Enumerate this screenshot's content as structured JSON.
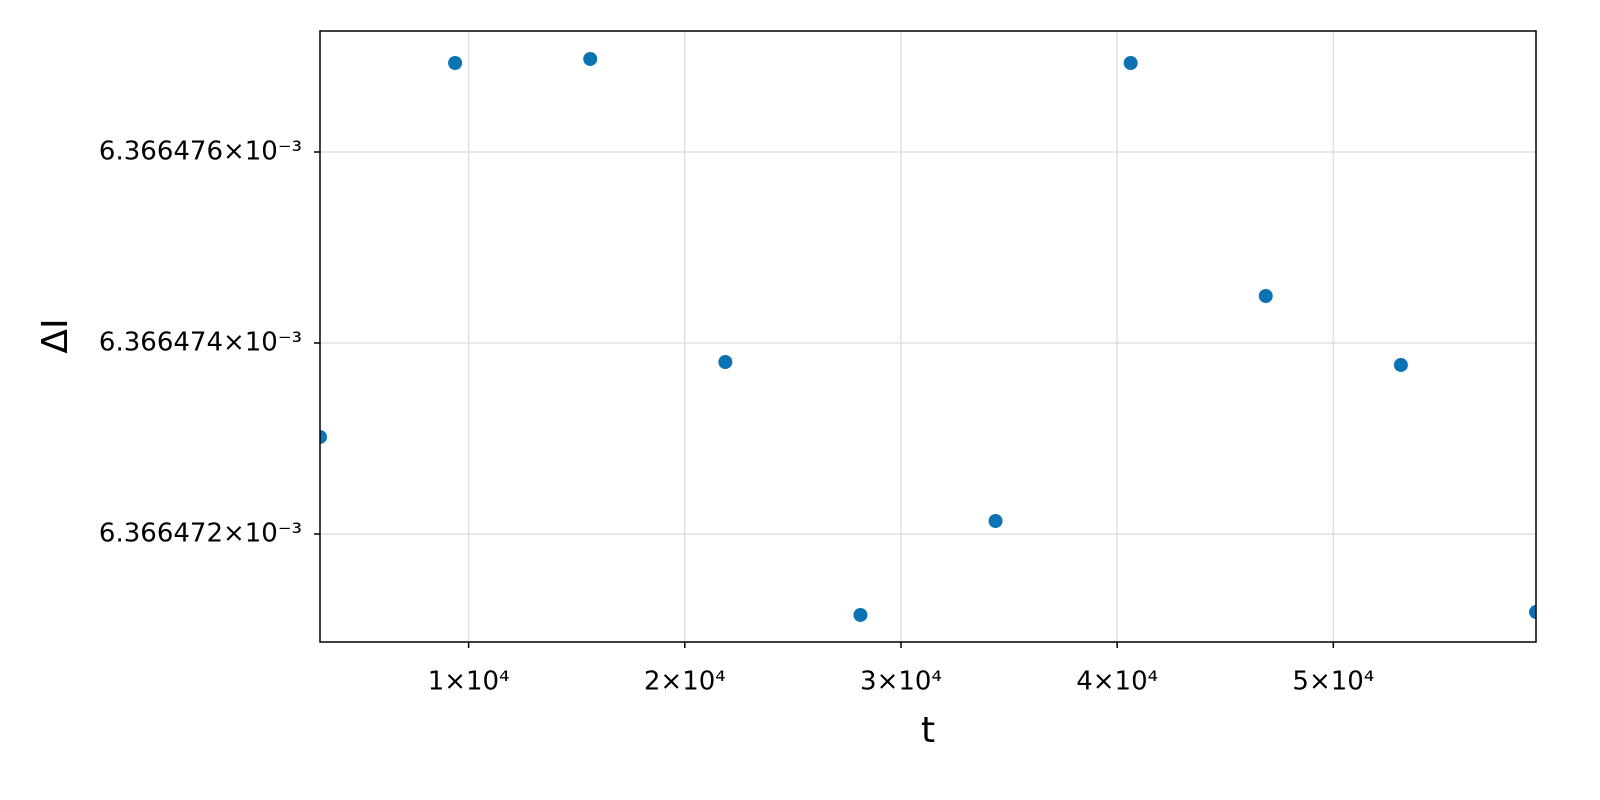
{
  "chart_data": {
    "type": "scatter",
    "x_label": "t",
    "y_label": "ΔI",
    "series": [
      {
        "color": "#0b72b3",
        "x": [
          3125,
          9375,
          15625,
          21875,
          28125,
          34375,
          40625,
          46875,
          53125,
          59375
        ],
        "values": [
          0.006366473016,
          0.006366476932,
          0.006366476974,
          0.006366473801,
          0.006366471152,
          0.006366472136,
          0.006366476932,
          0.006366474492,
          0.00636647377,
          0.006366471183
        ]
      }
    ],
    "xlim": [
      3125,
      59375
    ],
    "ylim": [
      0.006366470869,
      0.006366477267
    ],
    "xticks": [
      {
        "value": 10000,
        "label": "1×10⁴"
      },
      {
        "value": 20000,
        "label": "2×10⁴"
      },
      {
        "value": 30000,
        "label": "3×10⁴"
      },
      {
        "value": 40000,
        "label": "4×10⁴"
      },
      {
        "value": 50000,
        "label": "5×10⁴"
      }
    ],
    "yticks": [
      {
        "value": 0.006366472,
        "label": "6.366472×10⁻³"
      },
      {
        "value": 0.006366474,
        "label": "6.366474×10⁻³"
      },
      {
        "value": 0.006366476,
        "label": "6.366476×10⁻³"
      }
    ],
    "grid": true
  }
}
